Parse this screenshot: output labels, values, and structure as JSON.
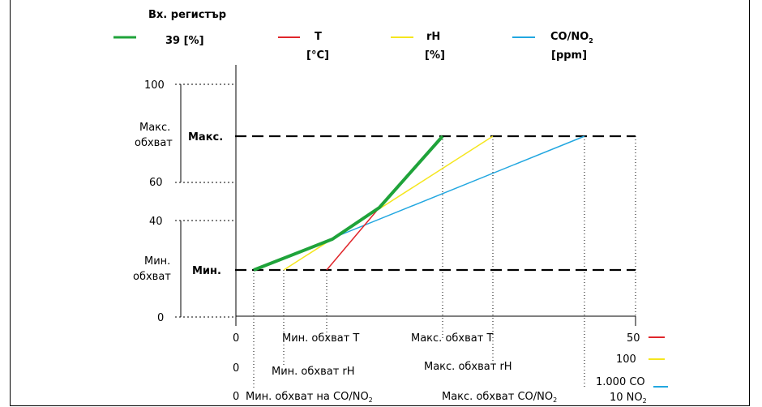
{
  "legend": {
    "input_register_line1": "Вх. регистър",
    "input_register_line2": "39 [%]",
    "t_line1": "T",
    "t_line2": "[°C]",
    "rh_line1": "rH",
    "rh_line2": "[%]",
    "co_line1": "CO/NO",
    "co_sub": "2",
    "co_line2": "[ppm]"
  },
  "y_axis": {
    "tick_100": "100",
    "tick_60": "60",
    "tick_40": "40",
    "tick_0": "0",
    "max_range_line1": "Макс.",
    "max_range_line2": "обхват",
    "min_range_line1": "Мин.",
    "min_range_line2": "обхват",
    "max_label": "Макс.",
    "min_label": "Мин."
  },
  "x_axis": {
    "row1_zero": "0",
    "row2_zero": "0",
    "row3_zero": "0",
    "min_range_t": "Мин. обхват T",
    "max_range_t": "Макс. обхват T",
    "min_range_rh": "Мин. обхват rH",
    "max_range_rh": "Макс. обхват rH",
    "min_range_co": "Мин. обхват на CO/NO",
    "min_range_co_sub": "2",
    "max_range_co": "Макс. обхват CO/NO",
    "max_range_co_sub": "2",
    "end_t": "50",
    "end_rh": "100",
    "end_co_line1": "1.000 CO",
    "end_co_line2": "10 NO",
    "end_co_sub": "2"
  },
  "colors": {
    "input_register": "#1fa33a",
    "t": "#e0262b",
    "rh": "#f5e61e",
    "co": "#22a7e0"
  }
}
